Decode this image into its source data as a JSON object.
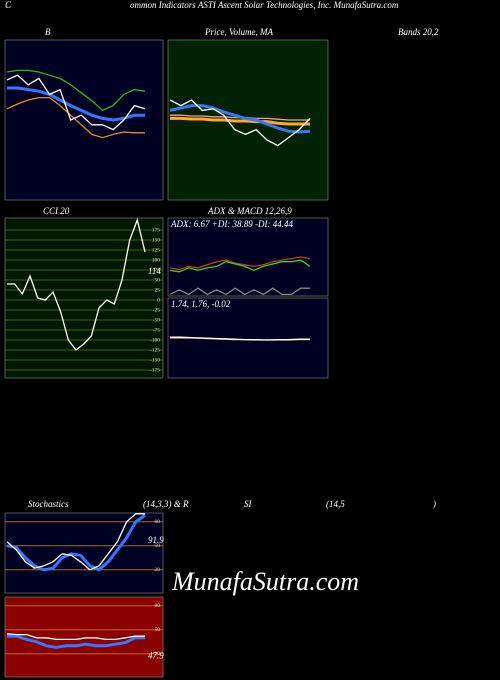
{
  "header": {
    "letter": "C",
    "text": "ommon  Indicators ASTI Ascent Solar Technologies, Inc. MunafaSutra.com"
  },
  "headings": [
    "B",
    "Price, Volume, MA",
    "Bands 20,2",
    "CCI 20",
    "ADX  & MACD 12,26,9",
    "Stochastics",
    "(14,3,3) & R",
    "SI",
    "(14,5",
    ")"
  ],
  "watermark": "MunafaSutra.com",
  "chart_data": [
    {
      "type": "line",
      "background": "#000022",
      "ylim": [
        0,
        100
      ],
      "series": [
        {
          "color": "#22bb22",
          "values": [
            80,
            81,
            81,
            80,
            78,
            76,
            72,
            67,
            62,
            56,
            59,
            66,
            69,
            68
          ]
        },
        {
          "color": "#ee8822",
          "values": [
            57,
            60,
            62.5,
            64,
            64,
            59,
            53,
            47,
            41,
            39,
            41,
            42.5,
            42,
            42
          ]
        },
        {
          "color": "#3377ff",
          "values": [
            70,
            70,
            69,
            68,
            66,
            62.5,
            59,
            56,
            53,
            51,
            50,
            51,
            53,
            53
          ]
        },
        {
          "color": "#ffffff",
          "values": [
            75,
            78,
            72,
            76,
            66,
            69,
            50,
            53,
            47,
            47,
            44,
            50,
            59,
            57
          ]
        }
      ]
    },
    {
      "type": "line",
      "background": "#002200",
      "ylim": [
        0,
        100
      ],
      "series": [
        {
          "color": "#ff9999",
          "values": [
            53,
            53,
            52.5,
            52.5,
            52,
            52,
            51.5,
            51.5,
            51,
            51,
            50.5,
            50,
            50,
            50
          ]
        },
        {
          "color": "#ffaa22",
          "values": [
            51,
            51,
            50.6,
            50.6,
            50,
            50,
            49.4,
            49.4,
            49,
            49,
            48,
            47.5,
            47.5,
            47.5
          ]
        },
        {
          "color": "#3377ff",
          "values": [
            56,
            57.5,
            59,
            59,
            57.5,
            55,
            53,
            51,
            50,
            47.5,
            45,
            43,
            42.5,
            43
          ]
        },
        {
          "color": "#ffffff",
          "values": [
            62.5,
            59,
            62.5,
            56,
            57,
            53,
            44,
            41,
            44,
            37.5,
            34,
            39,
            44,
            51
          ]
        }
      ]
    },
    {
      "type": "line",
      "background": "#001800",
      "grid_color": "#6b6b10",
      "ylim": [
        -195,
        205
      ],
      "yticks": [
        175,
        150,
        125,
        100,
        75,
        50,
        25,
        0,
        -25,
        -50,
        -75,
        -100,
        -125,
        -150,
        -175
      ],
      "value_label": "114",
      "series": [
        {
          "color": "#ffffff",
          "values": [
            40,
            40,
            15,
            60,
            5,
            0,
            20,
            -30,
            -100,
            -125,
            -110,
            -90,
            -20,
            0,
            -10,
            50,
            150,
            200,
            120
          ]
        }
      ]
    },
    {
      "type": "line",
      "background": "#000022",
      "ylim": [
        0,
        100
      ],
      "annotation": "ADX: 6.67  +DI: 38.89  -DI: 44.44",
      "series": [
        {
          "color": "#888888",
          "values": [
            2,
            8,
            2,
            10,
            2,
            8,
            2,
            10,
            2,
            8,
            2,
            10,
            2,
            2,
            10,
            10
          ]
        },
        {
          "color": "#dd3311",
          "values": [
            36,
            34,
            38,
            36,
            40,
            44,
            46,
            42,
            40,
            38,
            40,
            44,
            46,
            48,
            50,
            48
          ]
        },
        {
          "color": "#22dd22",
          "values": [
            33,
            31,
            36,
            33,
            36,
            38,
            44,
            41,
            38,
            33,
            38,
            41,
            44,
            44,
            46,
            38
          ]
        }
      ]
    },
    {
      "type": "line",
      "background": "#000022",
      "ylim": [
        0,
        100
      ],
      "annotation": "1.74, 1.76, -0.02",
      "series": [
        {
          "color": "#ff9955",
          "values": [
            50,
            50,
            50,
            49.5,
            49,
            48.5,
            48,
            48,
            47.5,
            47.5,
            47.5,
            47.5,
            48,
            48
          ]
        },
        {
          "color": "#ffffff",
          "values": [
            51,
            51,
            50.5,
            50,
            49.5,
            49,
            48.5,
            48,
            48,
            47.5,
            48,
            48,
            48.5,
            48.5
          ]
        }
      ]
    },
    {
      "type": "line",
      "background": "#000022",
      "grid_color": "#cc7722",
      "ylim": [
        -9,
        91
      ],
      "yticks": [
        80,
        50,
        20
      ],
      "value_label": "91.9",
      "series": [
        {
          "color": "#3377ff",
          "values": [
            50,
            48,
            35,
            25,
            20,
            22,
            35,
            40,
            38,
            25,
            20,
            30,
            45,
            60,
            80,
            88
          ]
        },
        {
          "color": "#ffffff",
          "values": [
            55,
            45,
            30,
            22,
            25,
            30,
            40,
            38,
            30,
            20,
            25,
            40,
            55,
            80,
            90,
            90
          ]
        }
      ]
    },
    {
      "type": "line",
      "background": "#8b0000",
      "grid_color": "#cc7722",
      "ylim": [
        -9,
        91
      ],
      "yticks": [
        80,
        50,
        20
      ],
      "value_label": "47.9",
      "series": [
        {
          "color": "#3377ff",
          "values": [
            42,
            42,
            38,
            35,
            30,
            28,
            30,
            30,
            32,
            30,
            30,
            32,
            34,
            40,
            40
          ]
        },
        {
          "color": "#ffffff",
          "values": [
            45,
            44,
            44,
            40,
            40,
            38,
            38,
            38,
            40,
            40,
            38,
            38,
            40,
            42,
            42
          ]
        }
      ]
    }
  ]
}
